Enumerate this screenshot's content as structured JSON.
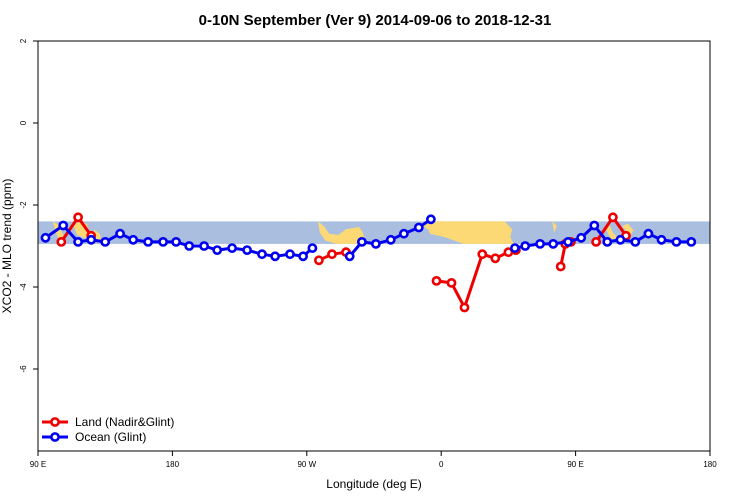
{
  "chart_data": {
    "type": "line",
    "title": "0-10N September (Ver 9)   2014-09-06 to 2018-12-31",
    "xlabel": "Longitude (deg E)",
    "ylabel": "XCO2 - MLO trend (ppm)",
    "xlim": [
      90,
      450
    ],
    "ylim": [
      -8,
      2
    ],
    "x_ticks": [
      {
        "value": 90,
        "label": "90 E"
      },
      {
        "value": 162,
        "label": "180"
      },
      {
        "value": 234,
        "label": "90 W"
      },
      {
        "value": 306,
        "label": "0"
      },
      {
        "value": 378,
        "label": "90 E"
      },
      {
        "value": 450,
        "label": "180"
      }
    ],
    "y_ticks": [
      {
        "value": 2,
        "label": "2"
      },
      {
        "value": 0,
        "label": "0"
      },
      {
        "value": -2,
        "label": "-2"
      },
      {
        "value": -4,
        "label": "-4"
      },
      {
        "value": -6,
        "label": "-6"
      }
    ],
    "map_strip": {
      "ymin": -2.95,
      "ymax": -2.4,
      "ocean_color": "#aabfe0",
      "land_color": "#fdd976"
    },
    "legend_position": "bottom-left",
    "series": [
      {
        "name": "Land (Nadir&Glint)",
        "color": "#ee0000",
        "segments": [
          [
            [
              102.5,
              -2.9
            ],
            [
              111.5,
              -2.3
            ],
            [
              118.5,
              -2.75
            ]
          ],
          [
            [
              240.5,
              -3.35
            ],
            [
              247.5,
              -3.2
            ],
            [
              255,
              -3.15
            ]
          ],
          [
            [
              303.5,
              -3.85
            ],
            [
              311.5,
              -3.9
            ],
            [
              318.5,
              -4.5
            ],
            [
              328,
              -3.2
            ],
            [
              335,
              -3.3
            ],
            [
              342,
              -3.15
            ],
            [
              346,
              -3.1
            ]
          ],
          [
            [
              370,
              -3.5
            ],
            [
              372.5,
              -2.95
            ],
            [
              375.5,
              -2.9
            ]
          ],
          [
            [
              389,
              -2.9
            ],
            [
              398,
              -2.3
            ],
            [
              405,
              -2.75
            ]
          ]
        ]
      },
      {
        "name": "Ocean (Glint)",
        "color": "#0000ee",
        "segments": [
          [
            [
              94,
              -2.8
            ],
            [
              103.5,
              -2.5
            ],
            [
              111.5,
              -2.9
            ],
            [
              118.5,
              -2.85
            ],
            [
              126,
              -2.9
            ],
            [
              134,
              -2.7
            ],
            [
              141,
              -2.85
            ],
            [
              149,
              -2.9
            ],
            [
              157,
              -2.9
            ],
            [
              164,
              -2.9
            ],
            [
              171,
              -3.0
            ],
            [
              179,
              -3.0
            ],
            [
              186,
              -3.1
            ],
            [
              194,
              -3.05
            ],
            [
              202,
              -3.1
            ],
            [
              210,
              -3.2
            ],
            [
              217,
              -3.25
            ],
            [
              225,
              -3.2
            ],
            [
              232,
              -3.25
            ],
            [
              237,
              -3.05
            ]
          ],
          [
            [
              257,
              -3.25
            ],
            [
              263.5,
              -2.9
            ],
            [
              271,
              -2.95
            ],
            [
              279,
              -2.85
            ],
            [
              286,
              -2.7
            ],
            [
              294,
              -2.55
            ],
            [
              300.5,
              -2.35
            ]
          ],
          [
            [
              345.5,
              -3.05
            ],
            [
              351,
              -3.0
            ],
            [
              359,
              -2.95
            ],
            [
              366,
              -2.95
            ],
            [
              374,
              -2.9
            ],
            [
              381,
              -2.8
            ],
            [
              388,
              -2.5
            ],
            [
              395,
              -2.9
            ],
            [
              402,
              -2.85
            ],
            [
              410,
              -2.9
            ],
            [
              417,
              -2.7
            ],
            [
              424,
              -2.85
            ],
            [
              432,
              -2.9
            ],
            [
              440,
              -2.9
            ]
          ]
        ]
      }
    ]
  }
}
